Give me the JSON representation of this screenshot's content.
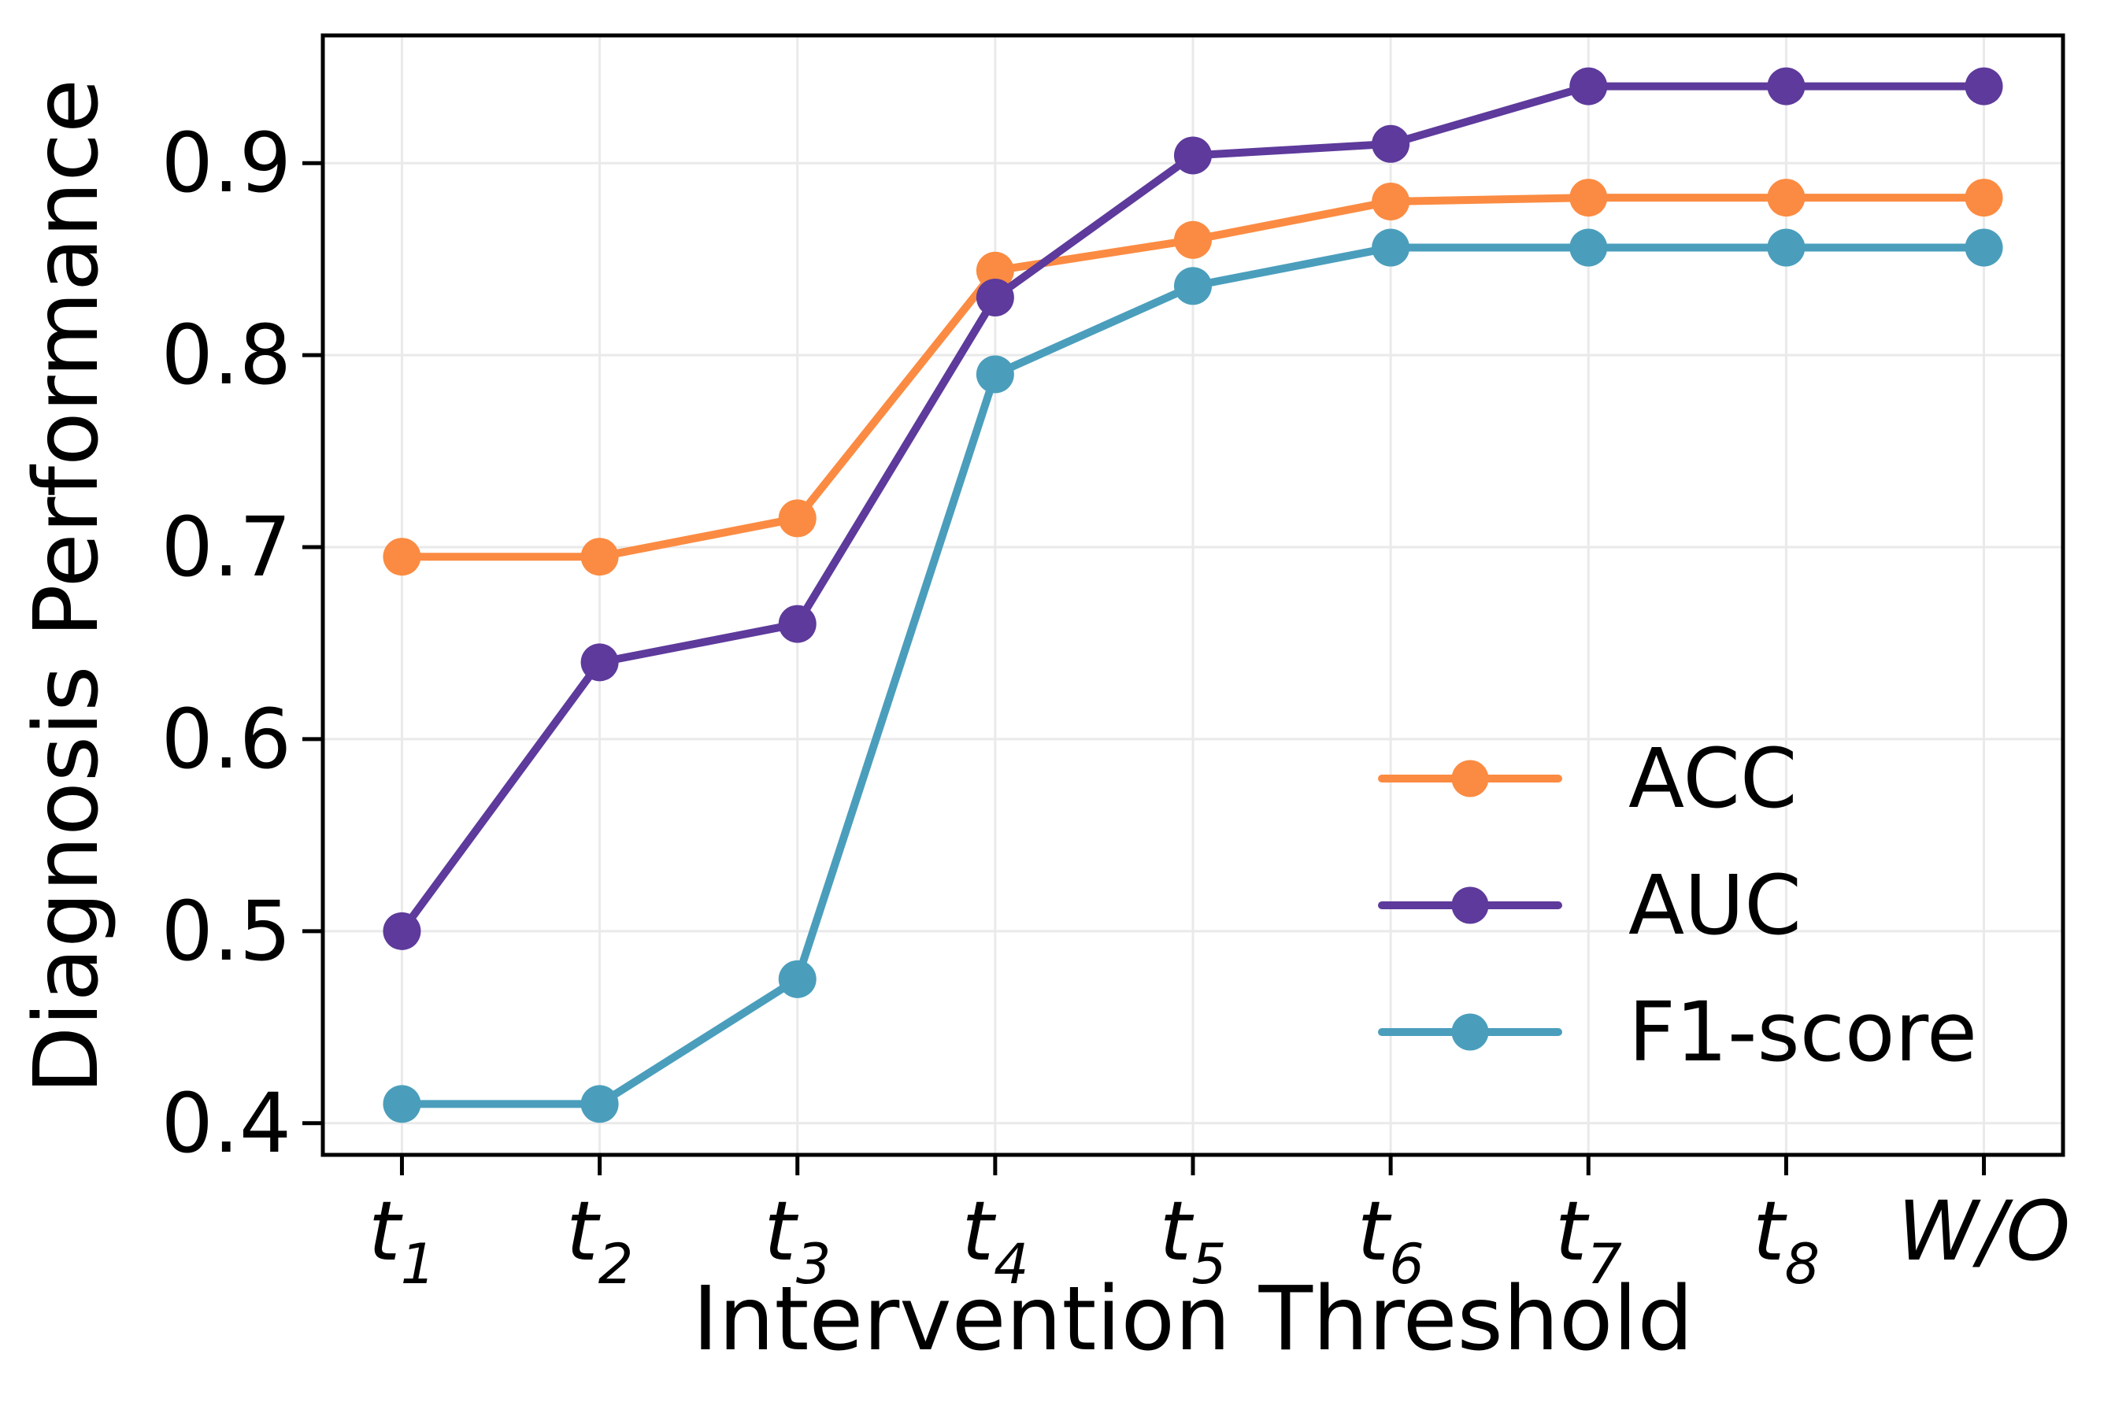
{
  "chart_data": {
    "type": "line",
    "xlabel": "Intervention Threshold",
    "ylabel": "Diagnosis Performance",
    "categories": [
      {
        "base": "t",
        "sub": "1"
      },
      {
        "base": "t",
        "sub": "2"
      },
      {
        "base": "t",
        "sub": "3"
      },
      {
        "base": "t",
        "sub": "4"
      },
      {
        "base": "t",
        "sub": "5"
      },
      {
        "base": "t",
        "sub": "6"
      },
      {
        "base": "t",
        "sub": "7"
      },
      {
        "base": "t",
        "sub": "8"
      },
      {
        "base": "W/O",
        "sub": ""
      }
    ],
    "yticks": [
      0.4,
      0.5,
      0.6,
      0.7,
      0.8,
      0.9
    ],
    "ylim": [
      0.3835,
      0.9665
    ],
    "xlim": [
      -0.4,
      8.4
    ],
    "grid": true,
    "legend_position": "center right",
    "series": [
      {
        "name": "ACC",
        "color": "#FB8B42",
        "values": [
          0.695,
          0.695,
          0.715,
          0.844,
          0.86,
          0.88,
          0.882,
          0.882,
          0.882
        ]
      },
      {
        "name": "AUC",
        "color": "#5D3A9B",
        "values": [
          0.5,
          0.64,
          0.66,
          0.83,
          0.904,
          0.91,
          0.94,
          0.94,
          0.94
        ]
      },
      {
        "name": "F1-score",
        "color": "#4A9EBC",
        "values": [
          0.41,
          0.41,
          0.475,
          0.79,
          0.836,
          0.856,
          0.856,
          0.856,
          0.856
        ]
      }
    ],
    "colors": {
      "grid": "#EAEAEA",
      "spine": "#000000",
      "text": "#000000",
      "background": "#FFFFFF"
    }
  }
}
